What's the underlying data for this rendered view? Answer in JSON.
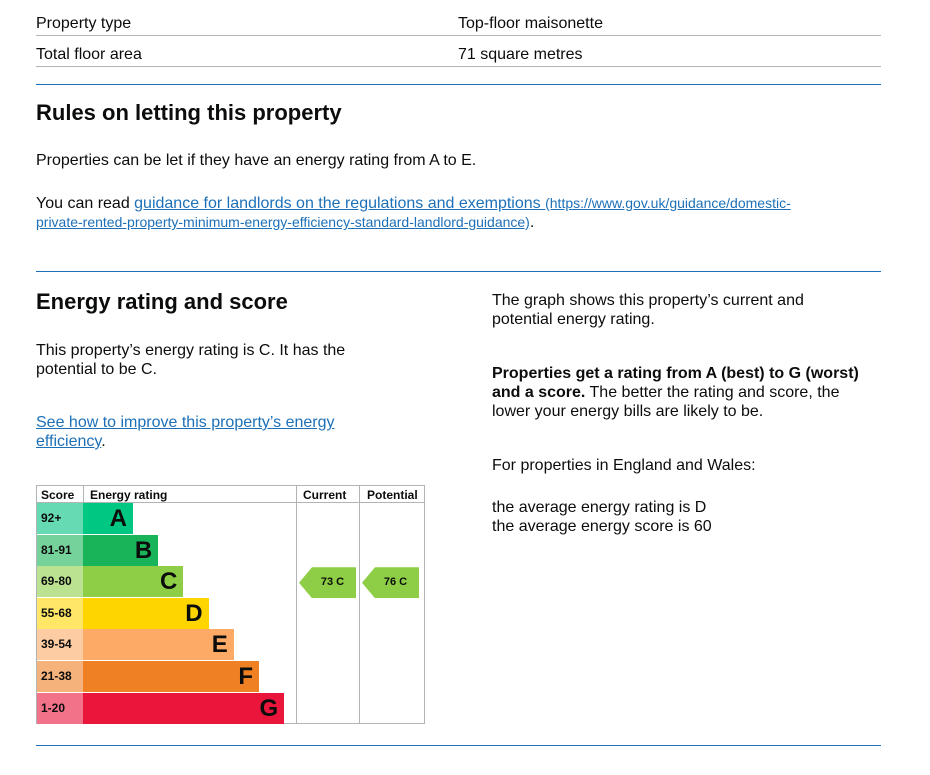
{
  "summary": [
    {
      "label": "Property type",
      "value": "Top-floor maisonette"
    },
    {
      "label": "Total floor area",
      "value": "71 square metres"
    }
  ],
  "letting": {
    "heading": "Rules on letting this property",
    "intro": "Properties can be let if they have an energy rating from A to E.",
    "read_prefix": "You can read ",
    "link_text": "guidance for landlords on the regulations and exemptions",
    "link_url_1": "(https://www.gov.uk/guidance/domestic-",
    "link_url_2": "private-rented-property-minimum-energy-efficiency-standard-landlord-guidance)",
    "read_suffix": "."
  },
  "energy": {
    "heading": "Energy rating and score",
    "rating_line_1": "This property’s energy rating is C. It has the",
    "rating_line_2": "potential to be C.",
    "improve_link_1": "See how to improve this property’s energy",
    "improve_link_2": "efficiency",
    "improve_suffix": ".",
    "graph_line_1": "The graph shows this property’s current and",
    "graph_line_2": "potential energy rating.",
    "bold_line_1": "Properties get a rating from A (best) to G (worst)",
    "bold_line_2": "and a score.",
    "after_bold_1": " The better the rating and score, the",
    "after_bold_2": "lower your energy bills are likely to be.",
    "england_wales": "For properties in England and Wales:",
    "avg_rating": "the average energy rating is D",
    "avg_score": "the average energy score is 60"
  },
  "chart_data": {
    "type": "table",
    "headers": {
      "score": "Score",
      "rating": "Energy rating",
      "current": "Current",
      "potential": "Potential"
    },
    "bands": [
      {
        "range": "92+",
        "letter": "A",
        "color": "#00c781",
        "score_color": "#66dab3",
        "text_color": "#0b0c0c"
      },
      {
        "range": "81-91",
        "letter": "B",
        "color": "#19b459",
        "score_color": "#75d29b",
        "text_color": "#0b0c0c"
      },
      {
        "range": "69-80",
        "letter": "C",
        "color": "#8dce46",
        "score_color": "#bbe290",
        "text_color": "#0b0c0c"
      },
      {
        "range": "55-68",
        "letter": "D",
        "color": "#ffd500",
        "score_color": "#ffe666",
        "text_color": "#0b0c0c"
      },
      {
        "range": "39-54",
        "letter": "E",
        "color": "#fcaa65",
        "score_color": "#fdcca3",
        "text_color": "#0b0c0c"
      },
      {
        "range": "21-38",
        "letter": "F",
        "color": "#ef8023",
        "score_color": "#f5b37b",
        "text_color": "#0b0c0c"
      },
      {
        "range": "1-20",
        "letter": "G",
        "color": "#e9153b",
        "score_color": "#f27389",
        "text_color": "#0b0c0c"
      }
    ],
    "current": {
      "score": 73,
      "letter": "C",
      "label": "73 C",
      "band_index": 2
    },
    "potential": {
      "score": 76,
      "letter": "C",
      "label": "76 C",
      "band_index": 2
    }
  }
}
